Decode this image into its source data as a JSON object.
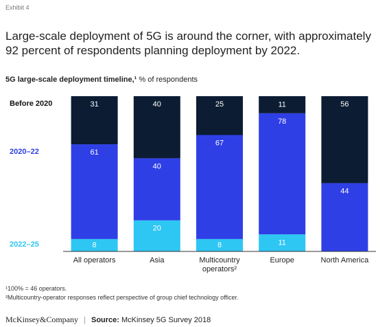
{
  "exhibit": "Exhibit 4",
  "headline": "Large-scale deployment of 5G is around the corner, with approximately 92 percent of respondents planning deployment by 2022.",
  "chart_data": {
    "type": "stacked_bar",
    "title": "5G large-scale deployment timeline,¹",
    "units": "% of respondents",
    "categories": [
      "All operators",
      "Asia",
      "Multicountry operators²",
      "Europe",
      "North America"
    ],
    "ylim": [
      0,
      100
    ],
    "series": [
      {
        "name": "2022–25",
        "color": "#2ec6f3",
        "values": [
          8,
          20,
          8,
          11,
          null
        ]
      },
      {
        "name": "2020–22",
        "color": "#2f3fe6",
        "values": [
          61,
          40,
          67,
          78,
          44
        ]
      },
      {
        "name": "Before 2020",
        "color": "#0c1c33",
        "values": [
          31,
          40,
          25,
          11,
          56
        ]
      }
    ]
  },
  "footnotes": [
    "¹100% = 46 operators.",
    "²Multicountry-operator responses reflect perspective of group chief technology officer."
  ],
  "footer": {
    "brand": "McKinsey&Company",
    "source_label": "Source:",
    "source": "McKinsey 5G Survey 2018"
  }
}
